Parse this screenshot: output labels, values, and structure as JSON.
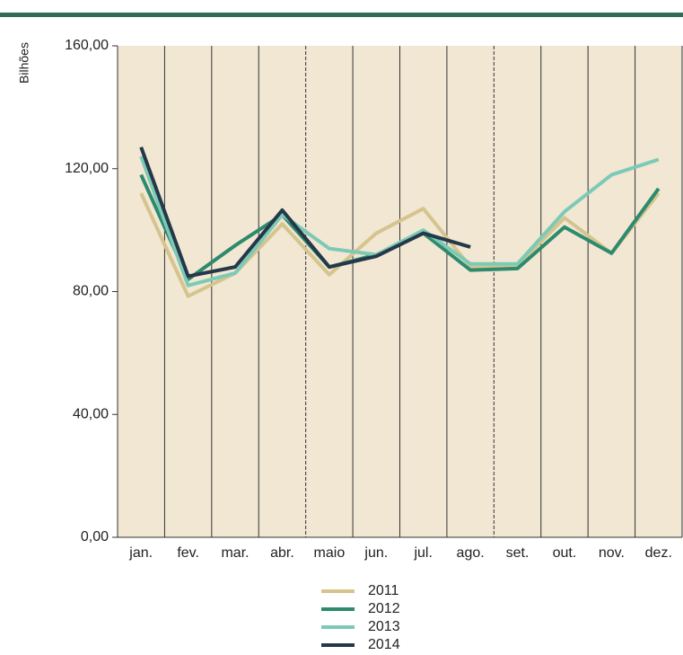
{
  "chart_data": {
    "type": "line",
    "y_label": "Bilhões",
    "categories": [
      "jan.",
      "fev.",
      "mar.",
      "abr.",
      "maio",
      "jun.",
      "jul.",
      "ago.",
      "set.",
      "out.",
      "nov.",
      "dez."
    ],
    "series": [
      {
        "name": "2011",
        "color": "#d5c48e",
        "values": [
          112,
          78.5,
          86,
          102,
          85.5,
          99,
          107,
          88,
          88.5,
          104,
          92.5,
          112
        ]
      },
      {
        "name": "2012",
        "color": "#2e8a6d",
        "values": [
          118,
          84,
          95,
          105,
          88,
          92,
          99,
          87,
          87.5,
          101,
          92.5,
          113.5
        ]
      },
      {
        "name": "2013",
        "color": "#7ccab6",
        "values": [
          124,
          82,
          86,
          105,
          94,
          92,
          100,
          89,
          89,
          106,
          118,
          123
        ]
      },
      {
        "name": "2014",
        "color": "#25384a",
        "values": [
          127,
          85,
          88,
          106.5,
          88,
          91.5,
          99,
          94.5,
          null,
          null,
          null,
          null
        ]
      }
    ],
    "ylim": [
      0,
      160
    ],
    "yticks": [
      {
        "value": 0,
        "label": "0,00"
      },
      {
        "value": 40,
        "label": "40,00"
      },
      {
        "value": 80,
        "label": "80,00"
      },
      {
        "value": 120,
        "label": "120,00"
      },
      {
        "value": 160,
        "label": "160,00"
      }
    ],
    "grid": false,
    "legend": "bottom"
  }
}
